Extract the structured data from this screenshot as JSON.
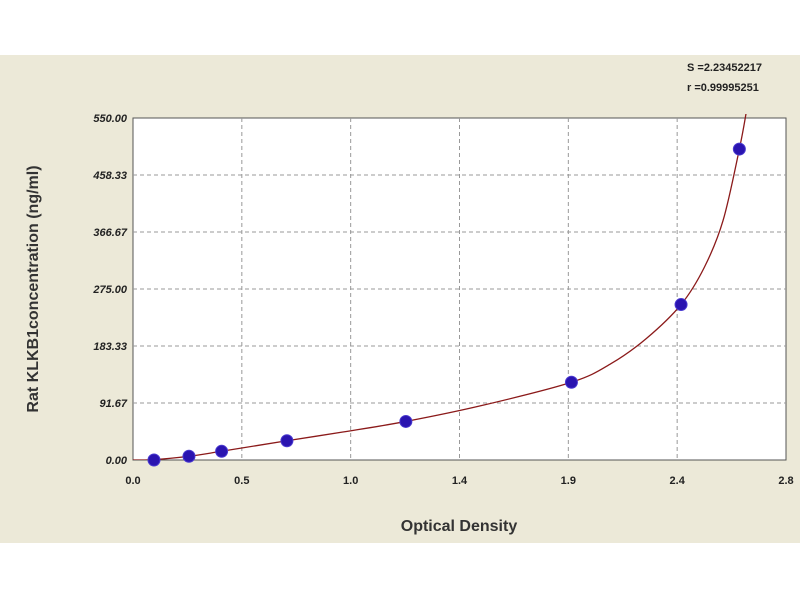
{
  "chart_data": {
    "type": "scatter",
    "title": "",
    "xlabel": "Optical Density",
    "ylabel": "Rat KLKB1concentration (ng/ml)",
    "xlim": [
      0.0,
      2.8
    ],
    "ylim": [
      0.0,
      550.0
    ],
    "x_ticks": [
      "0.0",
      "0.5",
      "1.0",
      "1.4",
      "1.9",
      "2.4",
      "2.8"
    ],
    "y_ticks": [
      "0.00",
      "91.67",
      "183.33",
      "275.00",
      "366.67",
      "458.33",
      "550.00"
    ],
    "grid": true,
    "stats": {
      "s": "S =2.23452217",
      "r": "r =0.99995251"
    },
    "series": [
      {
        "points": [
          {
            "x": 0.09,
            "y": 0.0
          },
          {
            "x": 0.24,
            "y": 6.0
          },
          {
            "x": 0.38,
            "y": 14.0
          },
          {
            "x": 0.66,
            "y": 31.0
          },
          {
            "x": 1.17,
            "y": 62.0
          },
          {
            "x": 1.88,
            "y": 125.0
          },
          {
            "x": 2.35,
            "y": 250.0
          },
          {
            "x": 2.6,
            "y": 500.0
          }
        ],
        "fit_curve": [
          [
            0.0,
            0.0
          ],
          [
            0.09,
            0.5
          ],
          [
            0.24,
            6.0
          ],
          [
            0.38,
            14.0
          ],
          [
            0.66,
            31.0
          ],
          [
            0.9,
            45.0
          ],
          [
            1.17,
            62.0
          ],
          [
            1.5,
            88.0
          ],
          [
            1.88,
            125.0
          ],
          [
            2.05,
            155.0
          ],
          [
            2.2,
            195.0
          ],
          [
            2.35,
            250.0
          ],
          [
            2.45,
            310.0
          ],
          [
            2.53,
            385.0
          ],
          [
            2.6,
            500.0
          ],
          [
            2.63,
            560.0
          ]
        ]
      }
    ],
    "colors": {
      "point": "#2a14b0",
      "curve": "#8b1a1a",
      "grid": "#999999",
      "background": "#ece9d8",
      "plot_background": "#ffffff"
    }
  }
}
